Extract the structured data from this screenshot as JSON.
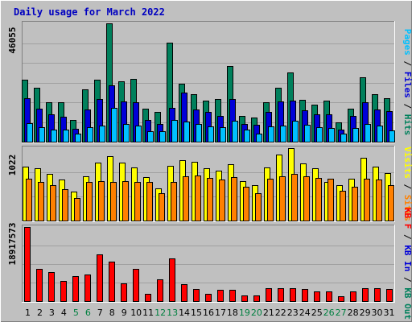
{
  "title": "Daily usage for March 2022",
  "colors": {
    "background": "#c0c0c0",
    "title": "#0000c0",
    "hits": "#00805c",
    "files": "#0000d8",
    "pages": "#00c0ff",
    "visits": "#ffff00",
    "sites": "#ff8000",
    "kbf": "#ff0000",
    "weekend_label": "#008040",
    "weekday_label": "#000000"
  },
  "chart_data": [
    {
      "type": "bar",
      "panel": "top",
      "y_max_label": "46055",
      "side_legend": [
        {
          "text": "Pages",
          "color_key": "pages"
        },
        {
          "text": " / ",
          "color_key": "weekday_label"
        },
        {
          "text": "Files",
          "color_key": "files"
        },
        {
          "text": " / ",
          "color_key": "weekday_label"
        },
        {
          "text": "Hits",
          "color_key": "hits"
        }
      ],
      "ylim": [
        0,
        46055
      ],
      "series": [
        {
          "name": "Hits",
          "values": [
            24000,
            21000,
            15500,
            15500,
            8500,
            20500,
            24000,
            46055,
            23500,
            24500,
            13000,
            11500,
            38500,
            22500,
            18500,
            16000,
            16500,
            29500,
            10000,
            9500,
            15500,
            21000,
            27000,
            16300,
            14500,
            16000,
            7500,
            13000,
            25000,
            18500,
            17000
          ]
        },
        {
          "name": "Files",
          "values": [
            17000,
            12900,
            10500,
            9800,
            5000,
            12500,
            16600,
            22000,
            15700,
            15500,
            8500,
            7000,
            13300,
            19000,
            12500,
            11500,
            10000,
            16500,
            7000,
            6500,
            11500,
            15700,
            16000,
            12300,
            10500,
            10500,
            4700,
            10000,
            15500,
            12500,
            12000
          ]
        },
        {
          "name": "Pages",
          "values": [
            7200,
            5500,
            4700,
            4700,
            3000,
            5500,
            6300,
            13200,
            7000,
            6300,
            4200,
            4200,
            8400,
            7800,
            7000,
            5800,
            5500,
            8200,
            4700,
            3200,
            5800,
            6300,
            8000,
            6500,
            5500,
            5200,
            3000,
            5200,
            6800,
            6300,
            4300
          ]
        }
      ]
    },
    {
      "type": "bar",
      "panel": "middle",
      "y_max_label": "1022",
      "side_legend": [
        {
          "text": "Visits",
          "color_key": "visits"
        },
        {
          "text": " / ",
          "color_key": "weekday_label"
        },
        {
          "text": "Sites",
          "color_key": "sites"
        }
      ],
      "ylim": [
        0,
        1022
      ],
      "series": [
        {
          "name": "Visits",
          "values": [
            765,
            735,
            655,
            575,
            410,
            625,
            815,
            910,
            815,
            750,
            615,
            450,
            775,
            850,
            825,
            735,
            705,
            800,
            555,
            505,
            755,
            930,
            1022,
            805,
            735,
            545,
            500,
            585,
            885,
            765,
            665
          ]
        },
        {
          "name": "Sites",
          "values": [
            585,
            550,
            495,
            440,
            320,
            540,
            555,
            540,
            555,
            550,
            540,
            385,
            540,
            625,
            640,
            605,
            575,
            615,
            480,
            385,
            595,
            620,
            660,
            625,
            605,
            585,
            415,
            480,
            595,
            575,
            505
          ]
        }
      ]
    },
    {
      "type": "bar",
      "panel": "bottom",
      "y_max_label": "18917573",
      "side_legend": [
        {
          "text": "KB F",
          "color_key": "kbf"
        },
        {
          "text": " / ",
          "color_key": "weekday_label"
        },
        {
          "text": "KB In",
          "color_key": "files"
        },
        {
          "text": " / ",
          "color_key": "weekday_label"
        },
        {
          "text": "KB Out",
          "color_key": "hits"
        }
      ],
      "ylim": [
        0,
        18917573
      ],
      "series": [
        {
          "name": "KB F",
          "values": [
            18917573,
            8300000,
            7400000,
            5200000,
            6300000,
            6800000,
            12000000,
            10000000,
            4600000,
            8200000,
            1900000,
            5600000,
            10800000,
            4300000,
            3000000,
            1900000,
            2800000,
            2800000,
            1500000,
            1500000,
            3300000,
            3300000,
            3300000,
            3000000,
            2500000,
            2500000,
            1200000,
            2500000,
            3300000,
            3300000,
            3000000
          ]
        }
      ]
    }
  ],
  "x_axis": {
    "labels": [
      "1",
      "2",
      "3",
      "4",
      "5",
      "6",
      "7",
      "8",
      "9",
      "10",
      "11",
      "12",
      "13",
      "14",
      "15",
      "16",
      "17",
      "18",
      "19",
      "20",
      "21",
      "22",
      "23",
      "24",
      "25",
      "26",
      "27",
      "28",
      "29",
      "30",
      "31"
    ],
    "weekend": [
      false,
      false,
      false,
      false,
      true,
      true,
      false,
      false,
      false,
      false,
      false,
      true,
      true,
      false,
      false,
      false,
      false,
      false,
      true,
      true,
      false,
      false,
      false,
      false,
      false,
      true,
      true,
      false,
      false,
      false,
      false
    ]
  }
}
